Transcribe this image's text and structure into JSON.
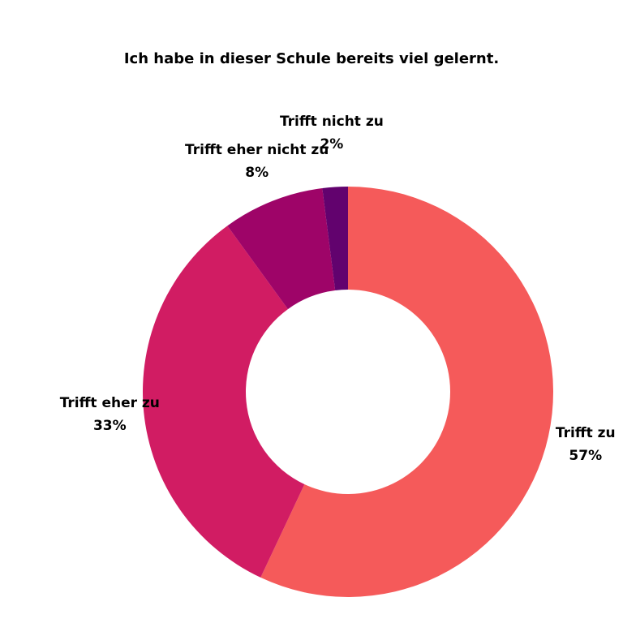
{
  "chart_data": {
    "type": "pie",
    "title": "Ich habe in dieser Schule bereits viel gelernt.",
    "donut": true,
    "categories": [
      "Trifft zu",
      "Trifft eher zu",
      "Trifft eher nicht zu",
      "Trifft nicht zu"
    ],
    "values": [
      57,
      33,
      8,
      2
    ],
    "value_labels": [
      "57%",
      "33%",
      "8%",
      "2%"
    ],
    "colors": [
      "#f55a5a",
      "#d11c63",
      "#9e0468",
      "#62026e"
    ],
    "legend": "none"
  }
}
